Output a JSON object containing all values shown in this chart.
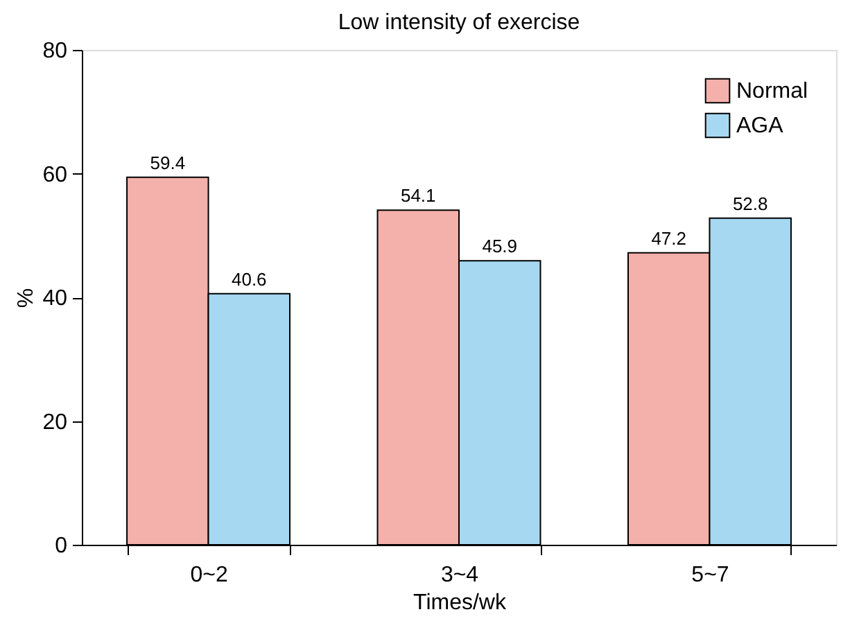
{
  "chart_data": {
    "type": "bar",
    "title": "Low intensity of exercise",
    "xlabel": "Times/wk",
    "ylabel": "%",
    "categories": [
      "0~2",
      "3~4",
      "5~7"
    ],
    "series": [
      {
        "name": "Normal",
        "color": "#f4b0aa",
        "values": [
          59.4,
          54.1,
          47.2
        ]
      },
      {
        "name": "AGA",
        "color": "#a7d8f2",
        "values": [
          40.6,
          45.9,
          52.8
        ]
      }
    ],
    "ylim": [
      0,
      80
    ],
    "yticks": [
      0,
      20,
      40,
      60,
      80
    ],
    "grid": false,
    "legend": "top right",
    "data_labels": true
  }
}
